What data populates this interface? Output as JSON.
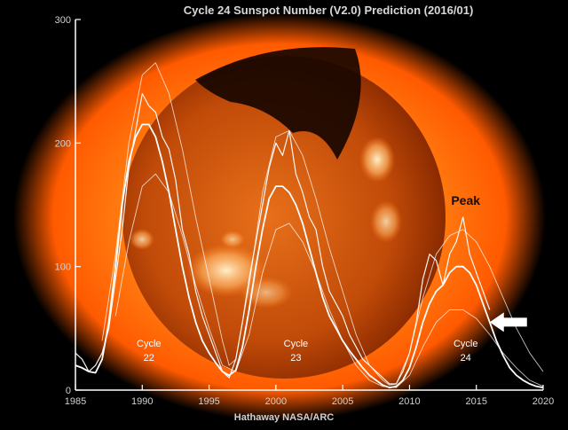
{
  "chart_data": {
    "type": "line",
    "title": "Cycle 24 Sunspot Number (V2.0) Prediction (2016/01)",
    "credit": "Hathaway  NASA/ARC",
    "xlim": [
      1985,
      2020
    ],
    "ylim": [
      0,
      300
    ],
    "xticks": [
      1985,
      1990,
      1995,
      2000,
      2005,
      2010,
      2015,
      2020
    ],
    "yticks": [
      0,
      100,
      200,
      300
    ],
    "grid": false,
    "background": "X-ray image of the Sun (orange)",
    "colors": {
      "background": "#000000",
      "lines": "#ffffff",
      "sun": "#ff6a00",
      "axis_text": "#d0d0d0"
    },
    "series": [
      {
        "kind": "monthly",
        "x": [
          1985.0,
          1985.5,
          1986.0,
          1986.5,
          1987.0,
          1987.5,
          1988.0,
          1988.5,
          1989.0,
          1989.5,
          1990.0,
          1990.5,
          1991.0,
          1991.5,
          1992.0,
          1992.5,
          1993.0,
          1993.5,
          1994.0,
          1994.5,
          1995.0,
          1995.5,
          1996.0,
          1996.5,
          1997.0,
          1997.5,
          1998.0,
          1998.5,
          1999.0,
          1999.5,
          2000.0,
          2000.5,
          2001.0,
          2001.5,
          2002.0,
          2002.5,
          2003.0,
          2003.5,
          2004.0,
          2004.5,
          2005.0,
          2005.5,
          2006.0,
          2006.5,
          2007.0,
          2007.5,
          2008.0,
          2008.5,
          2009.0,
          2009.5,
          2010.0,
          2010.5,
          2011.0,
          2011.5,
          2012.0,
          2012.5,
          2013.0,
          2013.5,
          2014.0,
          2014.5,
          2015.0,
          2015.5,
          2016.0
        ],
        "values": [
          30,
          25,
          15,
          20,
          30,
          50,
          90,
          130,
          180,
          210,
          240,
          230,
          225,
          205,
          195,
          170,
          130,
          110,
          80,
          60,
          45,
          30,
          15,
          10,
          25,
          55,
          90,
          120,
          150,
          180,
          200,
          190,
          210,
          175,
          160,
          140,
          130,
          100,
          80,
          70,
          60,
          45,
          35,
          25,
          20,
          15,
          10,
          5,
          5,
          15,
          30,
          55,
          90,
          110,
          105,
          85,
          110,
          120,
          140,
          110,
          95,
          80,
          65
        ]
      },
      {
        "kind": "smoothed",
        "x": [
          1985.0,
          1985.5,
          1986.0,
          1986.5,
          1987.0,
          1987.5,
          1988.0,
          1988.5,
          1989.0,
          1989.5,
          1990.0,
          1990.5,
          1991.0,
          1991.5,
          1992.0,
          1992.5,
          1993.0,
          1993.5,
          1994.0,
          1994.5,
          1995.0,
          1995.5,
          1996.0,
          1996.5,
          1997.0,
          1997.5,
          1998.0,
          1998.5,
          1999.0,
          1999.5,
          2000.0,
          2000.5,
          2001.0,
          2001.5,
          2002.0,
          2002.5,
          2003.0,
          2003.5,
          2004.0,
          2004.5,
          2005.0,
          2005.5,
          2006.0,
          2006.5,
          2007.0,
          2007.5,
          2008.0,
          2008.5,
          2009.0,
          2009.5,
          2010.0,
          2010.5,
          2011.0,
          2011.5,
          2012.0,
          2012.5,
          2013.0,
          2013.5,
          2014.0,
          2014.5,
          2015.0,
          2015.5,
          2016.0,
          2016.5,
          2017.0,
          2017.5,
          2018.0,
          2018.5,
          2019.0,
          2019.5,
          2020.0
        ],
        "values": [
          20,
          18,
          15,
          14,
          25,
          55,
          100,
          150,
          185,
          205,
          215,
          215,
          205,
          185,
          160,
          130,
          100,
          75,
          55,
          40,
          30,
          22,
          15,
          12,
          16,
          35,
          65,
          100,
          130,
          155,
          165,
          165,
          160,
          150,
          135,
          115,
          95,
          75,
          60,
          50,
          40,
          32,
          25,
          18,
          12,
          8,
          4,
          2,
          3,
          8,
          18,
          35,
          55,
          70,
          80,
          85,
          95,
          100,
          100,
          95,
          85,
          70,
          55,
          40,
          28,
          18,
          12,
          8,
          5,
          3,
          2
        ]
      },
      {
        "kind": "envelope-upper",
        "x": [
          1987.0,
          1988.0,
          1989.0,
          1990.0,
          1991.0,
          1992.0,
          1993.0,
          1994.0,
          1995.0,
          1996.0,
          1996.5,
          1997.0,
          1998.0,
          1999.0,
          2000.0,
          2001.0,
          2002.0,
          2003.0,
          2004.0,
          2005.0,
          2006.0,
          2007.0,
          2008.0,
          2008.5,
          2009.0,
          2010.0,
          2011.0,
          2012.0,
          2013.0,
          2014.0,
          2015.0,
          2016.0,
          2017.0,
          2018.0,
          2019.0,
          2020.0
        ],
        "values": [
          40,
          110,
          200,
          255,
          265,
          240,
          195,
          140,
          90,
          40,
          20,
          25,
          85,
          160,
          205,
          210,
          190,
          155,
          115,
          80,
          45,
          20,
          8,
          4,
          5,
          30,
          75,
          110,
          125,
          130,
          120,
          100,
          75,
          50,
          30,
          15
        ]
      },
      {
        "kind": "envelope-lower",
        "x": [
          1988.0,
          1989.0,
          1990.0,
          1991.0,
          1992.0,
          1993.0,
          1994.0,
          1995.0,
          1996.0,
          1997.0,
          1998.0,
          1999.0,
          2000.0,
          2001.0,
          2002.0,
          2003.0,
          2004.0,
          2005.0,
          2006.0,
          2007.0,
          2008.0,
          2009.0,
          2010.0,
          2011.0,
          2012.0,
          2013.0,
          2014.0,
          2015.0,
          2016.0,
          2017.0,
          2018.0,
          2019.0,
          2020.0
        ],
        "values": [
          60,
          120,
          165,
          175,
          160,
          125,
          85,
          50,
          20,
          15,
          45,
          95,
          130,
          135,
          120,
          95,
          65,
          40,
          20,
          8,
          3,
          2,
          12,
          35,
          55,
          65,
          65,
          58,
          45,
          30,
          18,
          8,
          3
        ]
      }
    ],
    "annotations": {
      "cycle22": {
        "label": "Cycle",
        "num": "22",
        "x": 1990.5,
        "y": 35
      },
      "cycle23": {
        "label": "Cycle",
        "num": "23",
        "x": 2001.5,
        "y": 35
      },
      "cycle24": {
        "label": "Cycle",
        "num": "24",
        "x": 2014.2,
        "y": 35
      },
      "peak": {
        "text": "Peak",
        "x": 2014.2,
        "y": 150
      },
      "arrow": {
        "icon": "arrow-left-icon",
        "x": 2016.0,
        "y": 55
      }
    }
  }
}
